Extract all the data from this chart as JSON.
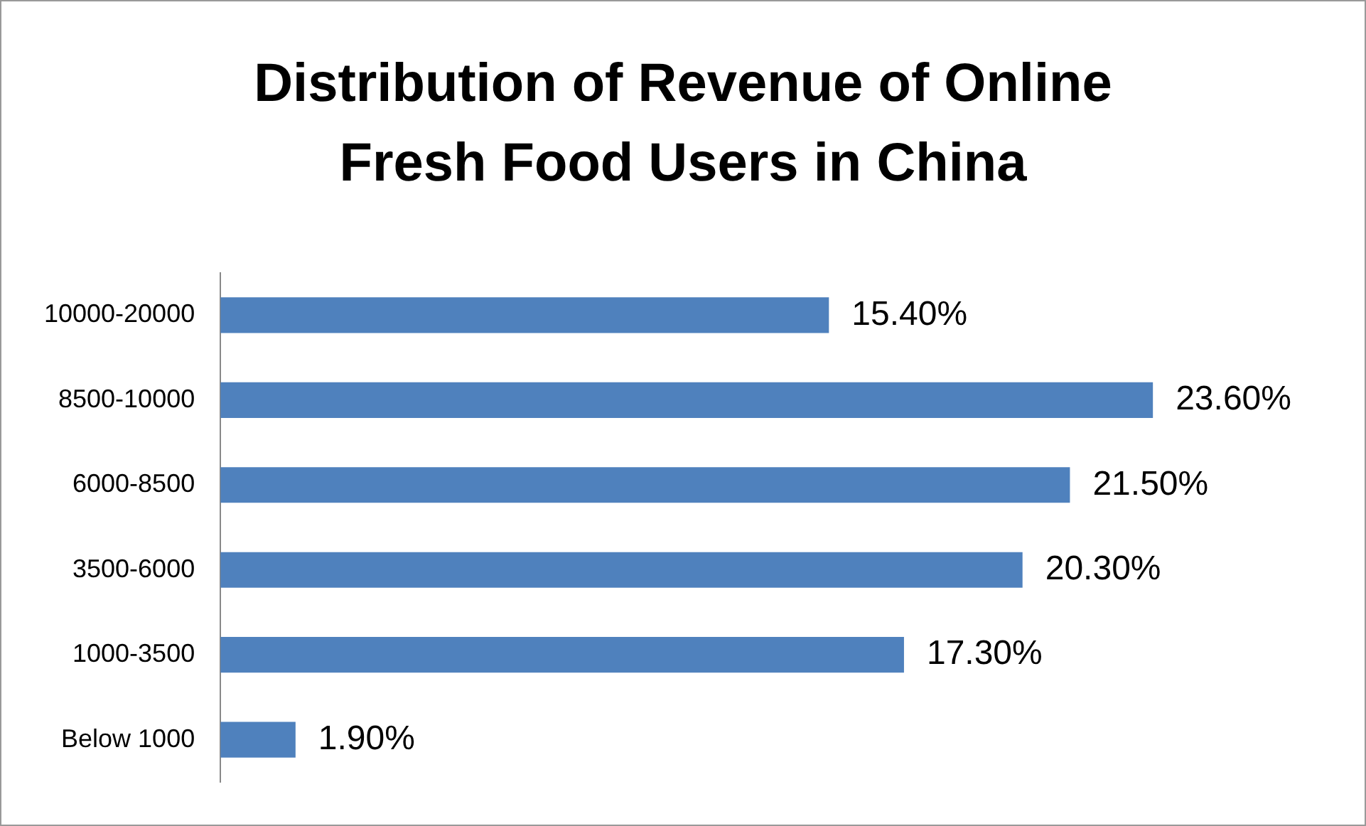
{
  "chart_data": {
    "type": "bar",
    "orientation": "horizontal",
    "title": "Distribution of Revenue of Online Fresh Food Users in China",
    "categories": [
      "10000-20000",
      "8500-10000",
      "6000-8500",
      "3500-6000",
      "1000-3500",
      "Below 1000"
    ],
    "values": [
      15.4,
      23.6,
      21.5,
      20.3,
      17.3,
      1.9
    ],
    "value_labels": [
      "15.40%",
      "23.60%",
      "21.50%",
      "20.30%",
      "17.30%",
      "1.90%"
    ],
    "color": "#4f81bd",
    "tick_labels": "y"
  }
}
